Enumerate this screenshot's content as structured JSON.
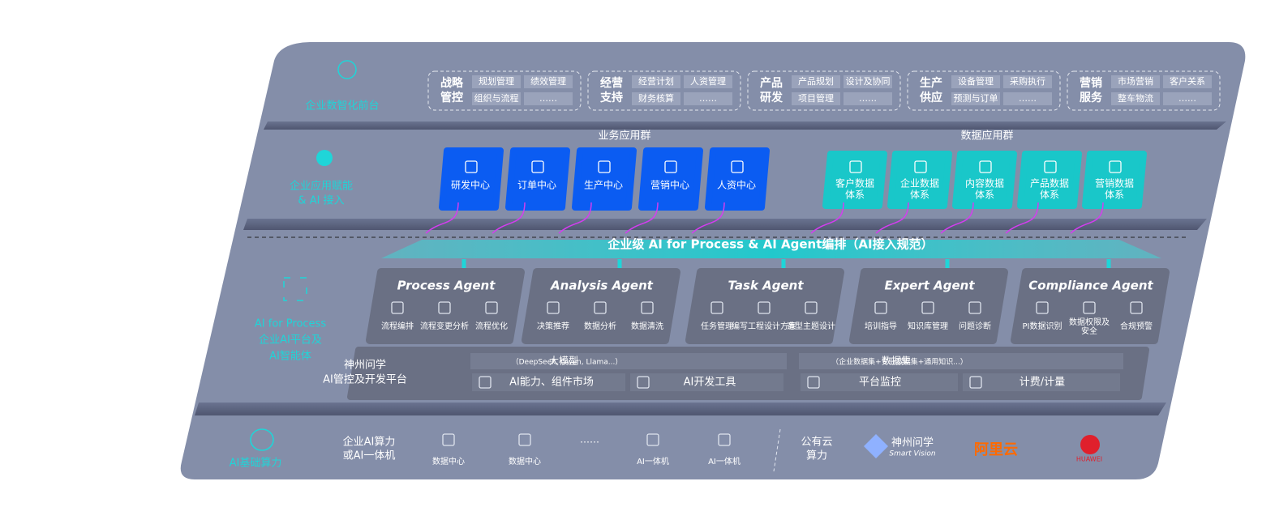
{
  "front": {
    "label": "企业数智化前台",
    "groups": [
      {
        "title": [
          "战略",
          "管控"
        ],
        "items": [
          "规划管理",
          "绩效管理",
          "组织与流程",
          "……"
        ]
      },
      {
        "title": [
          "经营",
          "支持"
        ],
        "items": [
          "经营计划",
          "人资管理",
          "财务核算",
          "……"
        ]
      },
      {
        "title": [
          "产品",
          "研发"
        ],
        "items": [
          "产品规划",
          "设计及协同",
          "项目管理",
          "……"
        ]
      },
      {
        "title": [
          "生产",
          "供应"
        ],
        "items": [
          "设备管理",
          "采购执行",
          "预测与订单",
          "……"
        ]
      },
      {
        "title": [
          "营销",
          "服务"
        ],
        "items": [
          "市场营销",
          "客户关系",
          "整车物流",
          "……"
        ]
      }
    ]
  },
  "apps": {
    "label": [
      "企业应用赋能",
      "& AI 接入"
    ],
    "business": {
      "title": "业务应用群",
      "items": [
        "研发中心",
        "订单中心",
        "生产中心",
        "营销中心",
        "人资中心"
      ]
    },
    "data": {
      "title": "数据应用群",
      "items": [
        [
          "客户数据",
          "体系"
        ],
        [
          "企业数据",
          "体系"
        ],
        [
          "内容数据",
          "体系"
        ],
        [
          "产品数据",
          "体系"
        ],
        [
          "营销数据",
          "体系"
        ]
      ]
    }
  },
  "banner": "企业级 AI for Process & AI Agent编排（AI接入规范）",
  "ai": {
    "label": [
      "AI for Process",
      "企业AI平台及",
      "AI智能体"
    ],
    "agents": [
      {
        "name": "Process Agent",
        "items": [
          [
            "流程编排"
          ],
          [
            "流程变更分析"
          ],
          [
            "流程优化"
          ]
        ]
      },
      {
        "name": "Analysis Agent",
        "items": [
          [
            "决策推荐"
          ],
          [
            "数据分析"
          ],
          [
            "数据清洗"
          ]
        ]
      },
      {
        "name": "Task Agent",
        "items": [
          [
            "任务管理"
          ],
          [
            "编写工程设计方案"
          ],
          [
            "造型主题设计"
          ]
        ]
      },
      {
        "name": "Expert Agent",
        "items": [
          [
            "培训指导"
          ],
          [
            "知识库管理"
          ],
          [
            "问题诊断"
          ]
        ]
      },
      {
        "name": "Compliance Agent",
        "items": [
          [
            "PI数据识别"
          ],
          [
            "数据权限及",
            "安全"
          ],
          [
            "合规预警"
          ]
        ]
      }
    ]
  },
  "platform": {
    "title": [
      "神州问学",
      "AI管控及开发平台"
    ],
    "panels": [
      {
        "title": "大模型",
        "note": "（DeepSeek, Qwen, Llama...）",
        "items": [
          "AI能力、组件市场",
          "AI开发工具"
        ]
      },
      {
        "title": "数据集",
        "note": "（企业数据集+专业数据集+通用知识...）",
        "items": [
          "平台监控",
          "计费/计量"
        ]
      }
    ]
  },
  "infra": {
    "label": "AI基础算力",
    "private": {
      "title": [
        "企业AI算力",
        "或AI一体机"
      ],
      "items": [
        "数据中心",
        "数据中心",
        "……",
        "AI一体机",
        "AI一体机"
      ]
    },
    "public": {
      "title": [
        "公有云",
        "算力"
      ],
      "vendors": [
        {
          "name": "神州问学",
          "sub": "Smart Vision"
        },
        {
          "name": "阿里云"
        },
        {
          "name": "HUAWEI"
        }
      ]
    }
  }
}
